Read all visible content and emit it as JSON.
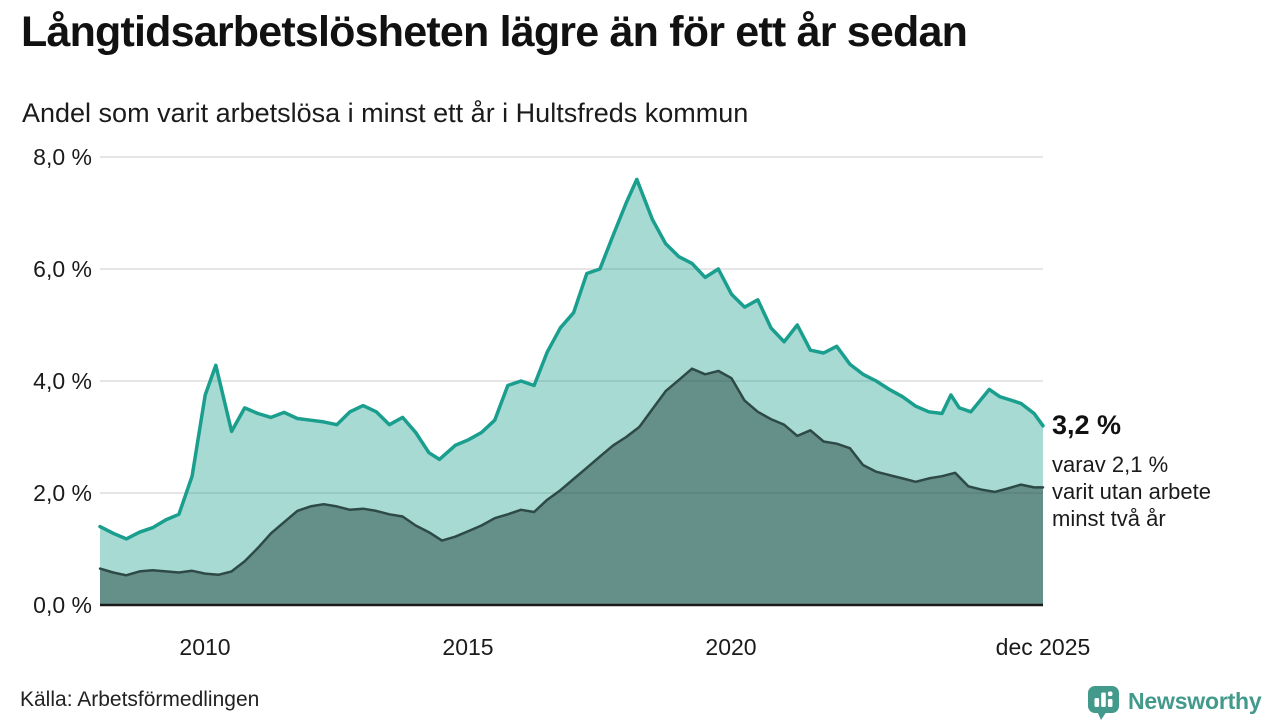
{
  "header": {
    "title": "Långtidsarbetslösheten lägre än för ett år sedan",
    "subtitle": "Andel som varit arbetslösa i minst ett år i Hultsfreds kommun"
  },
  "annotation": {
    "value": "3,2 %",
    "lines": [
      "varav 2,1 %",
      "varit utan arbete",
      "minst två år"
    ]
  },
  "footer": {
    "source": "Källa: Arbetsförmedlingen",
    "brand": "Newsworthy"
  },
  "colors": {
    "accent_teal": "#1a9e8e",
    "light_area": "#a5d6cf",
    "dark_area": "#6f9b96",
    "dark_line": "#2e4a46",
    "gridline": "#dedede",
    "axis_line": "#1a1a1a",
    "brand_teal": "#42998c",
    "text": "#1a1a1a"
  },
  "chart_data": {
    "type": "area",
    "title": "Långtidsarbetslösheten lägre än för ett år sedan",
    "subtitle": "Andel som varit arbetslösa i minst ett år i Hultsfreds kommun",
    "xlabel": "",
    "ylabel": "",
    "xlim": [
      2008.0,
      2025.92
    ],
    "ylim": [
      0,
      8
    ],
    "grid": "horizontal",
    "grid_color": "#dedede",
    "legend": "none",
    "y_ticks": [
      {
        "value": 8,
        "label": "8,0 %"
      },
      {
        "value": 6,
        "label": "6,0 %"
      },
      {
        "value": 4,
        "label": "4,0 %"
      },
      {
        "value": 2,
        "label": "2,0 %"
      },
      {
        "value": 0,
        "label": "0,0 %"
      }
    ],
    "x_ticks": [
      {
        "value": 2010,
        "label": "2010"
      },
      {
        "value": 2015,
        "label": "2015"
      },
      {
        "value": 2020,
        "label": "2020"
      },
      {
        "value": 2025.92,
        "label": "dec 2025"
      }
    ],
    "series": [
      {
        "name": "arbetslösa minst ett år",
        "end_value_label": "3,2 %",
        "line_color": "#1a9e8e",
        "line_width": 3.5,
        "fill_hex": "#a5d6cf",
        "fill": "rgba(26,158,142,0.38)",
        "points": [
          [
            2008.0,
            1.4
          ],
          [
            2008.25,
            1.28
          ],
          [
            2008.5,
            1.18
          ],
          [
            2008.75,
            1.3
          ],
          [
            2009.0,
            1.38
          ],
          [
            2009.25,
            1.52
          ],
          [
            2009.5,
            1.62
          ],
          [
            2009.75,
            2.3
          ],
          [
            2010.0,
            3.75
          ],
          [
            2010.2,
            4.28
          ],
          [
            2010.5,
            3.1
          ],
          [
            2010.75,
            3.52
          ],
          [
            2011.0,
            3.42
          ],
          [
            2011.25,
            3.35
          ],
          [
            2011.5,
            3.44
          ],
          [
            2011.75,
            3.33
          ],
          [
            2012.0,
            3.3
          ],
          [
            2012.25,
            3.27
          ],
          [
            2012.5,
            3.22
          ],
          [
            2012.75,
            3.45
          ],
          [
            2013.0,
            3.56
          ],
          [
            2013.25,
            3.45
          ],
          [
            2013.5,
            3.22
          ],
          [
            2013.75,
            3.35
          ],
          [
            2014.0,
            3.08
          ],
          [
            2014.25,
            2.72
          ],
          [
            2014.45,
            2.6
          ],
          [
            2014.75,
            2.85
          ],
          [
            2015.0,
            2.95
          ],
          [
            2015.25,
            3.08
          ],
          [
            2015.5,
            3.3
          ],
          [
            2015.75,
            3.92
          ],
          [
            2016.0,
            4.0
          ],
          [
            2016.25,
            3.92
          ],
          [
            2016.5,
            4.52
          ],
          [
            2016.75,
            4.95
          ],
          [
            2017.0,
            5.22
          ],
          [
            2017.25,
            5.92
          ],
          [
            2017.5,
            6.0
          ],
          [
            2017.75,
            6.6
          ],
          [
            2018.0,
            7.18
          ],
          [
            2018.2,
            7.6
          ],
          [
            2018.5,
            6.88
          ],
          [
            2018.75,
            6.45
          ],
          [
            2019.0,
            6.22
          ],
          [
            2019.25,
            6.1
          ],
          [
            2019.5,
            5.85
          ],
          [
            2019.75,
            6.0
          ],
          [
            2020.0,
            5.55
          ],
          [
            2020.25,
            5.32
          ],
          [
            2020.5,
            5.45
          ],
          [
            2020.75,
            4.95
          ],
          [
            2021.0,
            4.7
          ],
          [
            2021.25,
            5.0
          ],
          [
            2021.5,
            4.55
          ],
          [
            2021.75,
            4.5
          ],
          [
            2022.0,
            4.62
          ],
          [
            2022.25,
            4.3
          ],
          [
            2022.5,
            4.12
          ],
          [
            2022.75,
            4.0
          ],
          [
            2023.0,
            3.85
          ],
          [
            2023.25,
            3.72
          ],
          [
            2023.5,
            3.55
          ],
          [
            2023.75,
            3.45
          ],
          [
            2024.0,
            3.42
          ],
          [
            2024.17,
            3.75
          ],
          [
            2024.33,
            3.52
          ],
          [
            2024.55,
            3.45
          ],
          [
            2024.9,
            3.85
          ],
          [
            2025.1,
            3.72
          ],
          [
            2025.3,
            3.66
          ],
          [
            2025.5,
            3.6
          ],
          [
            2025.75,
            3.42
          ],
          [
            2025.92,
            3.2
          ]
        ]
      },
      {
        "name": "arbetslösa minst två år",
        "end_value_label": "2,1 %",
        "line_color": "#2e4a46",
        "line_width": 2.5,
        "fill_hex": "#6f9b96",
        "fill": "rgba(30,60,56,0.48)",
        "points": [
          [
            2008.0,
            0.65
          ],
          [
            2008.25,
            0.58
          ],
          [
            2008.5,
            0.53
          ],
          [
            2008.75,
            0.6
          ],
          [
            2009.0,
            0.62
          ],
          [
            2009.25,
            0.6
          ],
          [
            2009.5,
            0.58
          ],
          [
            2009.75,
            0.61
          ],
          [
            2010.0,
            0.56
          ],
          [
            2010.25,
            0.54
          ],
          [
            2010.5,
            0.6
          ],
          [
            2010.75,
            0.78
          ],
          [
            2011.0,
            1.02
          ],
          [
            2011.25,
            1.28
          ],
          [
            2011.5,
            1.48
          ],
          [
            2011.75,
            1.68
          ],
          [
            2012.0,
            1.76
          ],
          [
            2012.25,
            1.8
          ],
          [
            2012.5,
            1.76
          ],
          [
            2012.75,
            1.7
          ],
          [
            2013.0,
            1.72
          ],
          [
            2013.25,
            1.68
          ],
          [
            2013.5,
            1.62
          ],
          [
            2013.75,
            1.58
          ],
          [
            2014.0,
            1.42
          ],
          [
            2014.25,
            1.3
          ],
          [
            2014.5,
            1.15
          ],
          [
            2014.75,
            1.22
          ],
          [
            2015.0,
            1.32
          ],
          [
            2015.25,
            1.42
          ],
          [
            2015.5,
            1.55
          ],
          [
            2015.75,
            1.62
          ],
          [
            2016.0,
            1.7
          ],
          [
            2016.25,
            1.66
          ],
          [
            2016.5,
            1.88
          ],
          [
            2016.75,
            2.05
          ],
          [
            2017.0,
            2.25
          ],
          [
            2017.25,
            2.45
          ],
          [
            2017.5,
            2.65
          ],
          [
            2017.75,
            2.85
          ],
          [
            2018.0,
            3.0
          ],
          [
            2018.25,
            3.18
          ],
          [
            2018.5,
            3.5
          ],
          [
            2018.75,
            3.82
          ],
          [
            2019.0,
            4.02
          ],
          [
            2019.25,
            4.22
          ],
          [
            2019.5,
            4.12
          ],
          [
            2019.75,
            4.18
          ],
          [
            2020.0,
            4.05
          ],
          [
            2020.25,
            3.65
          ],
          [
            2020.5,
            3.45
          ],
          [
            2020.75,
            3.32
          ],
          [
            2021.0,
            3.22
          ],
          [
            2021.25,
            3.02
          ],
          [
            2021.5,
            3.12
          ],
          [
            2021.75,
            2.92
          ],
          [
            2022.0,
            2.88
          ],
          [
            2022.25,
            2.8
          ],
          [
            2022.5,
            2.5
          ],
          [
            2022.75,
            2.38
          ],
          [
            2023.0,
            2.32
          ],
          [
            2023.25,
            2.26
          ],
          [
            2023.5,
            2.2
          ],
          [
            2023.75,
            2.26
          ],
          [
            2024.0,
            2.3
          ],
          [
            2024.25,
            2.36
          ],
          [
            2024.5,
            2.12
          ],
          [
            2024.75,
            2.06
          ],
          [
            2025.0,
            2.02
          ],
          [
            2025.25,
            2.08
          ],
          [
            2025.5,
            2.15
          ],
          [
            2025.75,
            2.1
          ],
          [
            2025.92,
            2.1
          ]
        ]
      }
    ]
  }
}
